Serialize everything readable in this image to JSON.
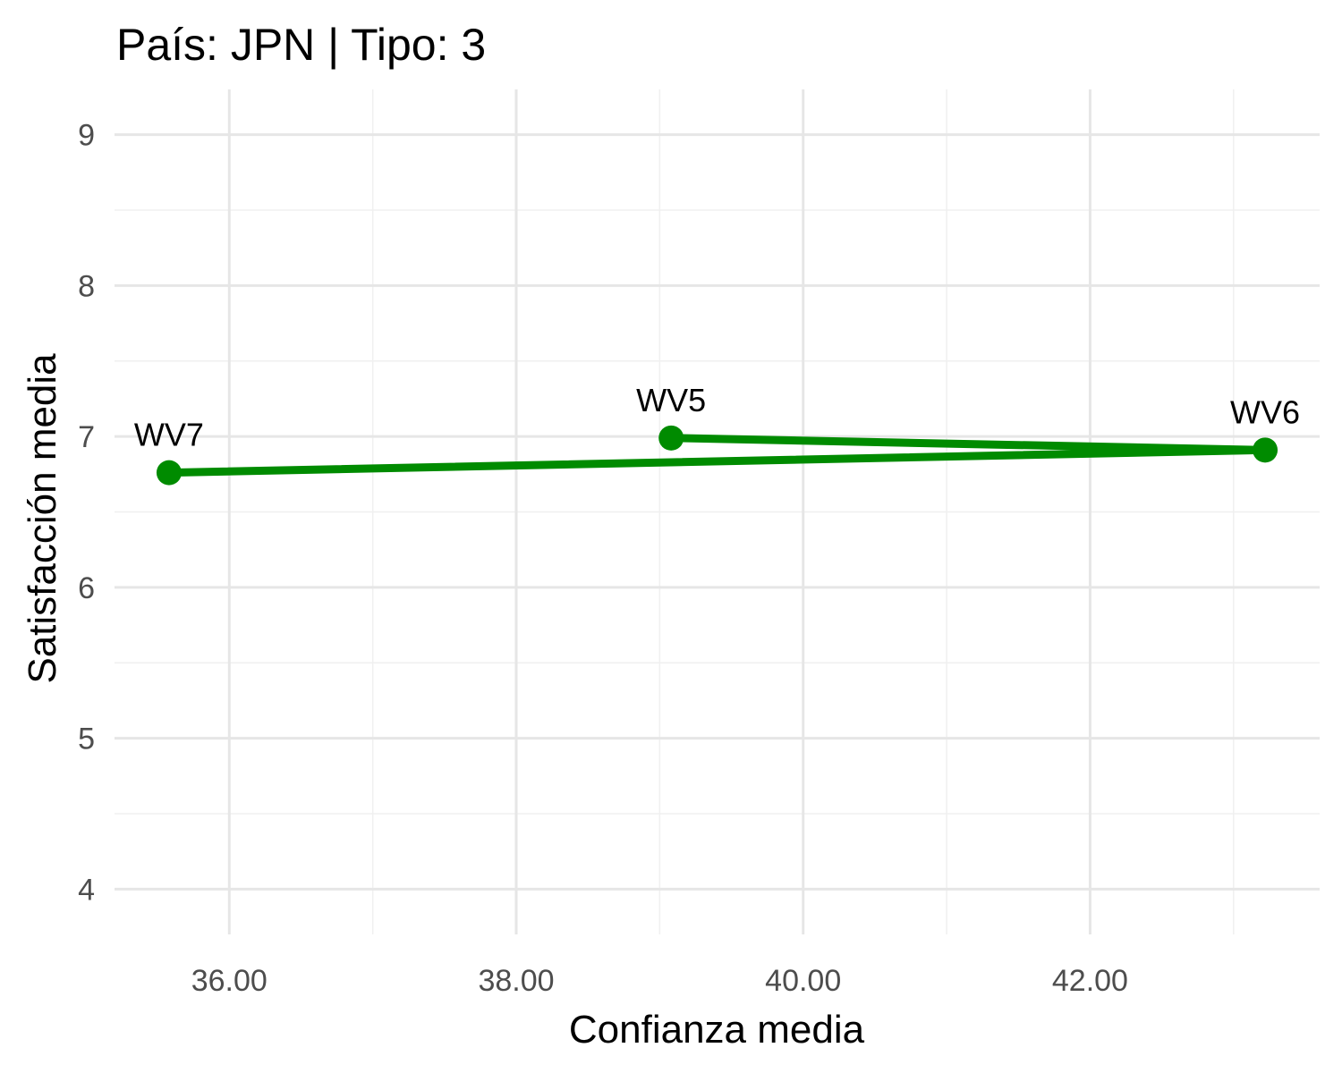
{
  "chart_data": {
    "type": "line",
    "title": "País: JPN | Tipo: 3",
    "xlabel": "Confianza media",
    "ylabel": "Satisfacción media",
    "xlim": [
      35.2,
      43.6
    ],
    "ylim": [
      3.7,
      9.3
    ],
    "x_ticks": [
      36,
      38,
      40,
      42
    ],
    "x_tick_labels": [
      "36.00",
      "38.00",
      "40.00",
      "42.00"
    ],
    "y_ticks": [
      4,
      5,
      6,
      7,
      8,
      9
    ],
    "y_tick_labels": [
      "4",
      "5",
      "6",
      "7",
      "8",
      "9"
    ],
    "grid": true,
    "legend": "none",
    "series": [
      {
        "color": "#008B00",
        "points": [
          {
            "label": "WV5",
            "x": 39.08,
            "y": 6.99
          },
          {
            "label": "WV6",
            "x": 43.22,
            "y": 6.91
          },
          {
            "label": "WV7",
            "x": 35.58,
            "y": 6.76
          }
        ]
      }
    ]
  }
}
